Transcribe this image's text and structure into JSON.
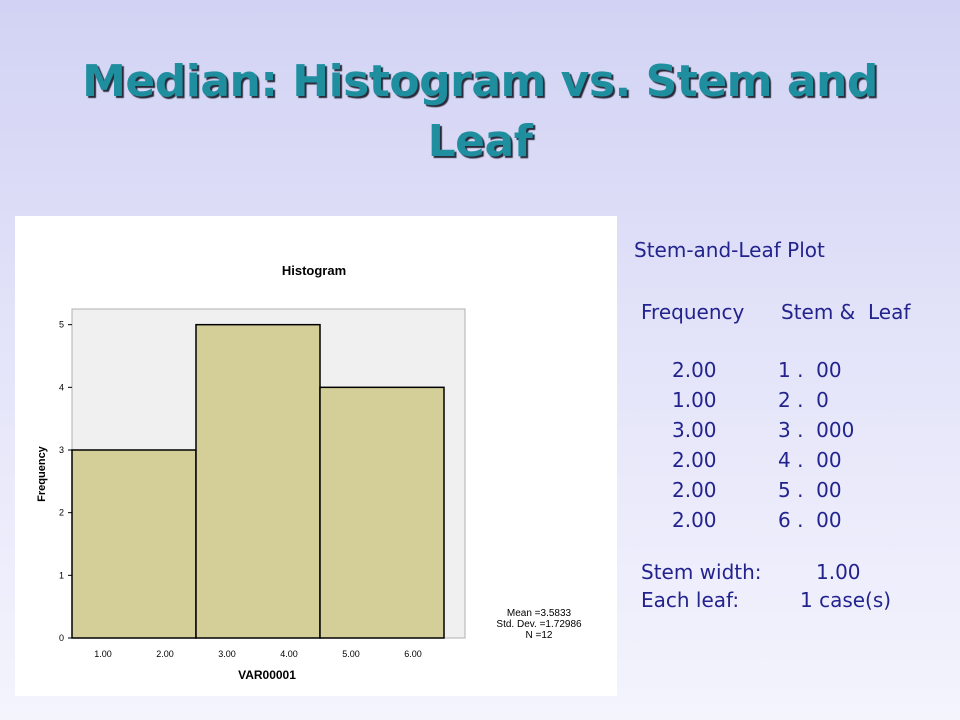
{
  "slide": {
    "title": "Median:  Histogram vs. Stem and Leaf"
  },
  "chart_data": {
    "type": "bar",
    "title": "Histogram",
    "xlabel": "VAR00001",
    "ylabel": "Frequency",
    "bins": [
      {
        "from": 1.0,
        "to": 3.0,
        "count": 3
      },
      {
        "from": 3.0,
        "to": 5.0,
        "count": 5
      },
      {
        "from": 5.0,
        "to": 7.0,
        "count": 4
      }
    ],
    "xticks": [
      "1.00",
      "2.00",
      "3.00",
      "4.00",
      "5.00",
      "6.00"
    ],
    "yticks": [
      "0",
      "1",
      "2",
      "3",
      "4",
      "5"
    ],
    "xlim": [
      1.0,
      7.0
    ],
    "ylim": [
      0,
      5.25
    ],
    "stats": {
      "mean": "Mean =3.5833",
      "std": "Std. Dev. =1.72986",
      "n": "N =12"
    },
    "colors": {
      "bar_fill": "#d4cf98",
      "bar_stroke": "#000000",
      "plot_bg": "#f0f0f0"
    }
  },
  "stem_leaf": {
    "title": "Stem-and-Leaf Plot",
    "header_frequency": "Frequency",
    "header_stem_leaf": "Stem &  Leaf",
    "rows": [
      {
        "frequency": "2.00",
        "stem_leaf": "1 .  00"
      },
      {
        "frequency": "1.00",
        "stem_leaf": "2 .  0"
      },
      {
        "frequency": "3.00",
        "stem_leaf": "3 .  000"
      },
      {
        "frequency": "2.00",
        "stem_leaf": "4 .  00"
      },
      {
        "frequency": "2.00",
        "stem_leaf": "5 .  00"
      },
      {
        "frequency": "2.00",
        "stem_leaf": "6 .  00"
      }
    ],
    "stem_width_label": "Stem width:",
    "stem_width_value": "1.00",
    "each_leaf_label": "Each leaf:",
    "each_leaf_value": "1 case(s)"
  },
  "colors": {
    "title_color": "#1f8f9f",
    "text_color": "#23238e"
  }
}
